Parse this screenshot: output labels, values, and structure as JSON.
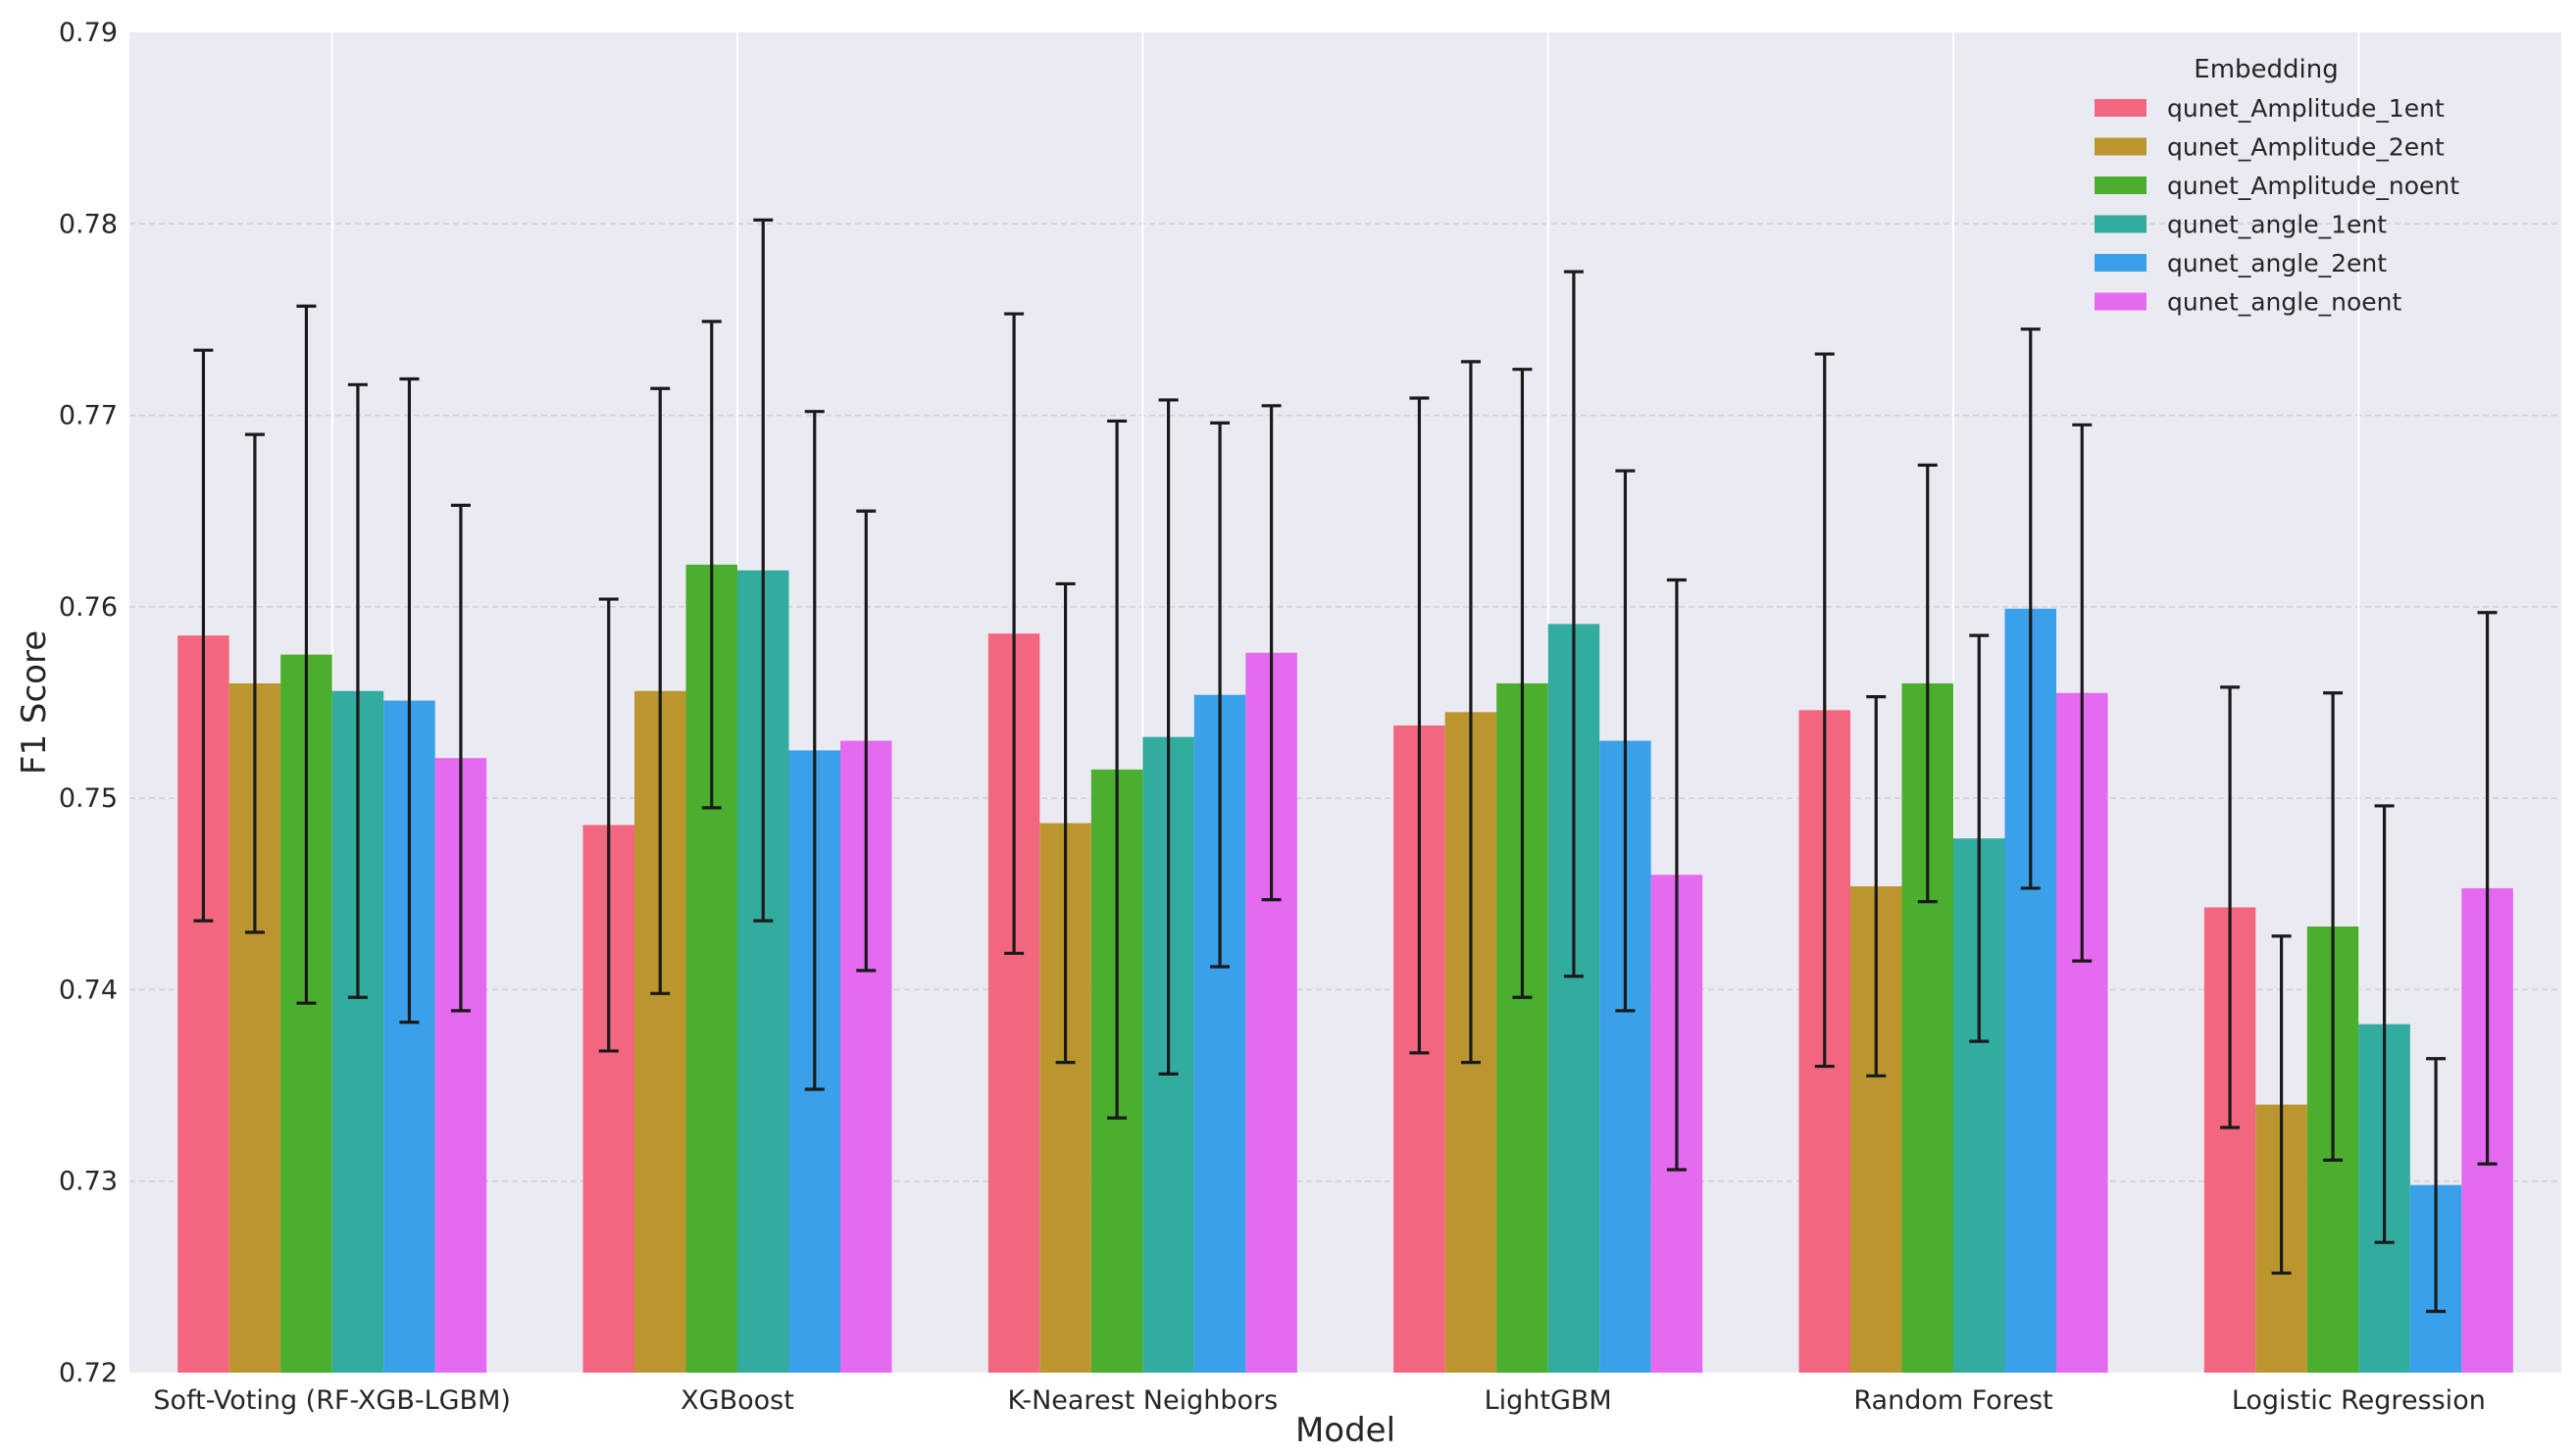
{
  "chart_data": {
    "type": "bar",
    "title": "",
    "xlabel": "Model",
    "ylabel": "F1 Score",
    "ylim": [
      0.72,
      0.79
    ],
    "yticks": [
      "0.72",
      "0.73",
      "0.74",
      "0.75",
      "0.76",
      "0.77",
      "0.78",
      "0.79"
    ],
    "grid": true,
    "legend": {
      "title": "Embedding",
      "placement": "top-right"
    },
    "categories": [
      "Soft-Voting (RF-XGB-LGBM)",
      "XGBoost",
      "K-Nearest Neighbors",
      "LightGBM",
      "Random Forest",
      "Logistic Regression"
    ],
    "series": [
      {
        "name": "qunet_Amplitude_1ent",
        "color": "#f2677f",
        "values": [
          0.7585,
          0.7486,
          0.7586,
          0.7538,
          0.7546,
          0.7443
        ],
        "errors": [
          0.0149,
          0.0118,
          0.0167,
          0.0171,
          0.0186,
          0.0115
        ]
      },
      {
        "name": "qunet_Amplitude_2ent",
        "color": "#bb962e",
        "values": [
          0.756,
          0.7556,
          0.7487,
          0.7545,
          0.7454,
          0.734
        ],
        "errors": [
          0.013,
          0.0158,
          0.0125,
          0.0183,
          0.0099,
          0.0088
        ]
      },
      {
        "name": "qunet_Amplitude_noent",
        "color": "#4bae2e",
        "values": [
          0.7575,
          0.7622,
          0.7515,
          0.756,
          0.756,
          0.7433
        ],
        "errors": [
          0.0182,
          0.0127,
          0.0182,
          0.0164,
          0.0114,
          0.0122
        ]
      },
      {
        "name": "qunet_angle_1ent",
        "color": "#32ac9f",
        "values": [
          0.7556,
          0.7619,
          0.7532,
          0.7591,
          0.7479,
          0.7382
        ],
        "errors": [
          0.016,
          0.0183,
          0.0176,
          0.0184,
          0.0106,
          0.0114
        ]
      },
      {
        "name": "qunet_angle_2ent",
        "color": "#3aa0ea",
        "values": [
          0.7551,
          0.7525,
          0.7554,
          0.753,
          0.7599,
          0.7298
        ],
        "errors": [
          0.0168,
          0.0177,
          0.0142,
          0.0141,
          0.0146,
          0.0066
        ]
      },
      {
        "name": "qunet_angle_noent",
        "color": "#e46af0",
        "values": [
          0.7521,
          0.753,
          0.7576,
          0.746,
          0.7555,
          0.7453
        ],
        "errors": [
          0.0132,
          0.012,
          0.0129,
          0.0154,
          0.014,
          0.0144
        ]
      }
    ]
  }
}
